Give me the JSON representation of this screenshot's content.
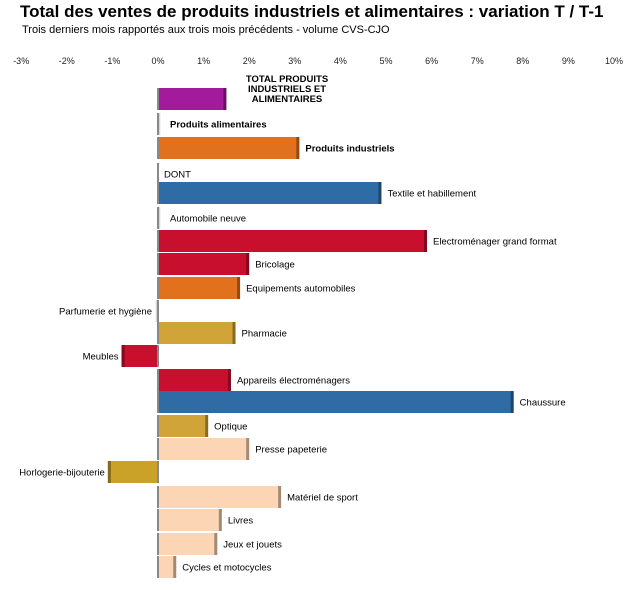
{
  "chart_data": {
    "type": "bar",
    "orientation": "horizontal",
    "title": "Total des ventes de produits industriels et alimentaires : variation T / T-1",
    "subtitle": "Trois derniers mois rapportés aux trois mois précédents - volume CVS-CJO",
    "xlim": [
      -3,
      10
    ],
    "x_ticks": [
      "-3%",
      "-2%",
      "-1%",
      "0%",
      "1%",
      "2%",
      "3%",
      "4%",
      "5%",
      "6%",
      "7%",
      "8%",
      "9%",
      "10%"
    ],
    "grid": false,
    "categories": [
      "TOTAL PRODUITS INDUSTRIELS ET ALIMENTAIRES",
      "Produits alimentaires",
      "Produits industriels",
      "DONT",
      "Textile et habillement",
      "Automobile neuve",
      "Electroménager grand format",
      "Bricolage",
      "Equipements automobiles",
      "Parfumerie et hygiène",
      "Pharmacie",
      "Meubles",
      "Appareils électroménagers",
      "Chaussure",
      "Optique",
      "Presse papeterie",
      "Horlogerie-bijouterie",
      "Matériel de sport",
      "Livres",
      "Jeux et jouets",
      "Cycles et motocycles"
    ],
    "values": [
      1.5,
      0.05,
      3.1,
      0,
      4.9,
      0.05,
      5.9,
      2.0,
      1.8,
      -0.05,
      1.7,
      -0.8,
      1.6,
      7.8,
      1.1,
      2.0,
      -1.1,
      2.7,
      1.4,
      1.3,
      0.4
    ],
    "bar_colors": [
      "#a31a9c",
      "#d8d8d8",
      "#e2711d",
      "#ffffff",
      "#2f6ba4",
      "#d8d8d8",
      "#c8102e",
      "#c8102e",
      "#e2711d",
      "#d8d8d8",
      "#d1a43a",
      "#c8102e",
      "#c8102e",
      "#2f6ba4",
      "#d1a43a",
      "#fcd5b5",
      "#c9a227",
      "#fcd5b5",
      "#fcd5b5",
      "#fcd5b5",
      "#fcd5b5"
    ],
    "bold_labels": [
      0,
      1,
      2
    ]
  }
}
